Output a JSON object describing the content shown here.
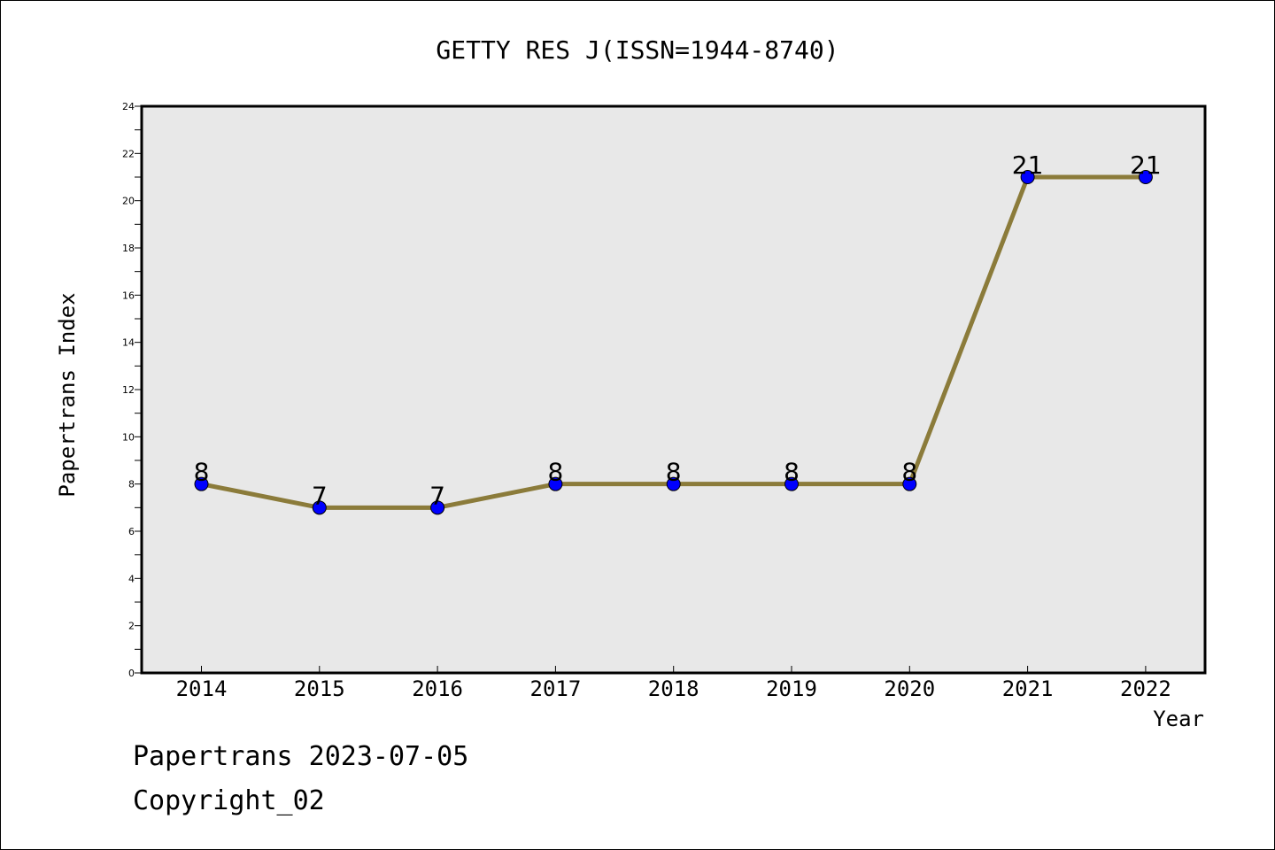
{
  "chart_data": {
    "type": "line",
    "title": "GETTY RES J(ISSN=1944-8740)",
    "xlabel": "Year",
    "ylabel": "Papertrans Index",
    "categories": [
      "2014",
      "2015",
      "2016",
      "2017",
      "2018",
      "2019",
      "2020",
      "2021",
      "2022"
    ],
    "series": [
      {
        "values": [
          8,
          7,
          7,
          8,
          8,
          8,
          8,
          21,
          21
        ]
      }
    ],
    "data_labels": [
      "8",
      "7",
      "7",
      "8",
      "8",
      "8",
      "8",
      "21",
      "21"
    ],
    "ylim": [
      0,
      24
    ],
    "yticks": [
      "0",
      "2",
      "4",
      "6",
      "8",
      "10",
      "12",
      "14",
      "16",
      "18",
      "20",
      "22",
      "24"
    ],
    "grid": false,
    "colors": {
      "line": "#8b7b3a",
      "marker": "#0000ff",
      "plot_bg": "#e8e8e8"
    }
  },
  "footer": {
    "line1": "Papertrans 2023-07-05",
    "line2": "Copyright_02"
  }
}
